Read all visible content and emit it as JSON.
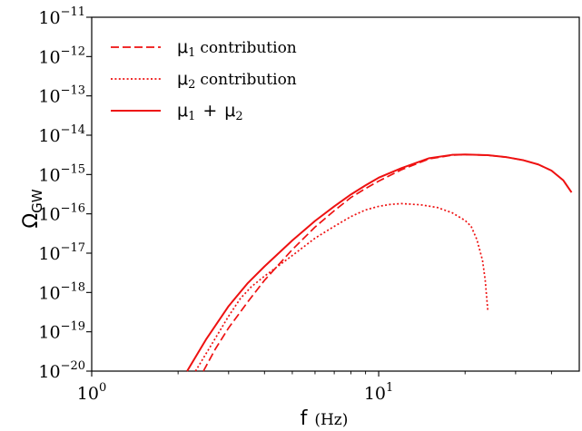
{
  "chart_data": {
    "type": "line",
    "xscale": "log",
    "yscale": "log",
    "xlim": [
      1,
      50
    ],
    "ylim": [
      1e-20,
      1e-11
    ],
    "x_tick_values": [
      1,
      10
    ],
    "x_tick_labels": [
      {
        "base": "10",
        "exp": "0"
      },
      {
        "base": "10",
        "exp": "1"
      }
    ],
    "y_tick_values": [
      1e-20,
      1e-19,
      1e-18,
      1e-17,
      1e-16,
      1e-15,
      1e-14,
      1e-13,
      1e-12,
      1e-11
    ],
    "y_tick_labels": [
      {
        "base": "10",
        "exp": "−20"
      },
      {
        "base": "10",
        "exp": "−19"
      },
      {
        "base": "10",
        "exp": "−18"
      },
      {
        "base": "10",
        "exp": "−17"
      },
      {
        "base": "10",
        "exp": "−16"
      },
      {
        "base": "10",
        "exp": "−15"
      },
      {
        "base": "10",
        "exp": "−14"
      },
      {
        "base": "10",
        "exp": "−13"
      },
      {
        "base": "10",
        "exp": "−12"
      },
      {
        "base": "10",
        "exp": "−11"
      }
    ],
    "xlabel": {
      "symbol": "f",
      "unit": "(Hz)"
    },
    "ylabel": {
      "symbol": "Ω",
      "subscript": "GW"
    },
    "legend_position": "top-left",
    "color": "#ee1111",
    "series": [
      {
        "name": "μ1 contribution",
        "legend": {
          "mu": "μ",
          "sub": "1",
          "text": "contribution"
        },
        "style": "dashed",
        "x": [
          2.45,
          2.7,
          3.0,
          3.5,
          4.0,
          5.0,
          6.0,
          7.0,
          8.0,
          9.0,
          10.0,
          12.0,
          15.0,
          18.0,
          20.0,
          24.0,
          28.0,
          32.0,
          36.0,
          40.0,
          44.0,
          47.0
        ],
        "y": [
          1e-20,
          3.7e-20,
          1.26e-19,
          5.8e-19,
          2.04e-18,
          1.23e-17,
          4.6e-17,
          1.2e-16,
          2.6e-16,
          4.4e-16,
          6.8e-16,
          1.32e-15,
          2.5e-15,
          3.1e-15,
          3.2e-15,
          3.1e-15,
          2.75e-15,
          2.3e-15,
          1.8e-15,
          1.26e-15,
          7.1e-16,
          3.5e-16
        ]
      },
      {
        "name": "μ2 contribution",
        "legend": {
          "mu": "μ",
          "sub": "2",
          "text": "contribution"
        },
        "style": "dotted",
        "x": [
          2.3,
          2.6,
          3.0,
          3.3,
          3.6,
          4.0,
          5.0,
          6.0,
          7.0,
          8.0,
          9.0,
          10.0,
          11.0,
          12.0,
          14.0,
          16.0,
          18.0,
          20.0,
          21.0,
          22.0,
          23.0,
          23.5,
          24.0
        ],
        "y": [
          1e-20,
          4.4e-20,
          2.5e-19,
          7.1e-19,
          1.4e-18,
          2.6e-18,
          8.7e-18,
          2.4e-17,
          4.8e-17,
          8.5e-17,
          1.26e-16,
          1.55e-16,
          1.74e-16,
          1.82e-16,
          1.7e-16,
          1.45e-16,
          1.07e-16,
          6.8e-17,
          4.8e-17,
          2.2e-17,
          6.6e-18,
          2.1e-18,
          3.5e-19
        ]
      },
      {
        "name": "μ1 + μ2",
        "legend": {
          "mu": "μ",
          "sub": "1",
          "plus": "+",
          "mu2": "μ",
          "sub2": "2"
        },
        "style": "solid",
        "x": [
          2.15,
          2.5,
          3.0,
          3.5,
          4.0,
          5.0,
          6.0,
          7.0,
          8.0,
          9.0,
          10.0,
          12.0,
          15.0,
          18.0,
          20.0,
          24.0,
          28.0,
          32.0,
          36.0,
          40.0,
          44.0,
          47.0
        ],
        "y": [
          1e-20,
          6.3e-20,
          4.5e-19,
          1.74e-18,
          4.6e-18,
          2.1e-17,
          6.6e-17,
          1.55e-16,
          3.1e-16,
          5.3e-16,
          8.3e-16,
          1.45e-15,
          2.6e-15,
          3.16e-15,
          3.24e-15,
          3.1e-15,
          2.75e-15,
          2.3e-15,
          1.8e-15,
          1.26e-15,
          7.1e-16,
          3.5e-16
        ]
      }
    ]
  }
}
